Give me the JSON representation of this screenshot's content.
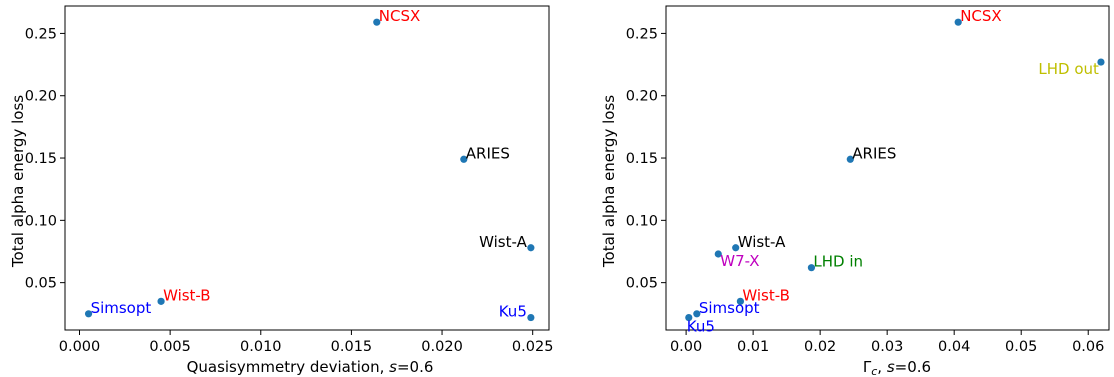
{
  "chart_data": [
    {
      "type": "scatter",
      "xlabel": "Quasisymmetry deviation, ",
      "xlabel_italic": "s",
      "xlabel_suffix": "=0.6",
      "ylabel": "Total alpha energy loss",
      "xlim": [
        -0.0008,
        0.0259
      ],
      "ylim": [
        0.012,
        0.272
      ],
      "xticks": [
        0.0,
        0.005,
        0.01,
        0.015,
        0.02,
        0.025
      ],
      "xtick_labels": [
        "0.000",
        "0.005",
        "0.010",
        "0.015",
        "0.020",
        "0.025"
      ],
      "yticks": [
        0.05,
        0.1,
        0.15,
        0.2,
        0.25
      ],
      "ytick_labels": [
        "0.05",
        "0.10",
        "0.15",
        "0.20",
        "0.25"
      ],
      "marker_color": "#1f77b4",
      "points": [
        {
          "label": "NCSX",
          "x": 0.0164,
          "y": 0.259,
          "color": "#ff0000",
          "anchor": "start"
        },
        {
          "label": "ARIES",
          "x": 0.0212,
          "y": 0.149,
          "color": "#000000",
          "anchor": "start"
        },
        {
          "label": "Wist-A",
          "x": 0.0249,
          "y": 0.078,
          "color": "#000000",
          "anchor": "end"
        },
        {
          "label": "Wist-B",
          "x": 0.0045,
          "y": 0.035,
          "color": "#ff0000",
          "anchor": "start"
        },
        {
          "label": "Simsopt",
          "x": 0.0005,
          "y": 0.025,
          "color": "#0000ff",
          "anchor": "start"
        },
        {
          "label": "Ku5",
          "x": 0.0249,
          "y": 0.022,
          "color": "#0000ff",
          "anchor": "end"
        }
      ]
    },
    {
      "type": "scatter",
      "xlabel": "Γ",
      "xlabel_sub": "c",
      "xlabel_mid": ", ",
      "xlabel_italic": "s",
      "xlabel_suffix": "=0.6",
      "ylabel": "Total alpha energy loss",
      "xlim": [
        -0.003,
        0.0631
      ],
      "ylim": [
        0.012,
        0.272
      ],
      "xticks": [
        0.0,
        0.01,
        0.02,
        0.03,
        0.04,
        0.05,
        0.06
      ],
      "xtick_labels": [
        "0.00",
        "0.01",
        "0.02",
        "0.03",
        "0.04",
        "0.05",
        "0.06"
      ],
      "yticks": [
        0.05,
        0.1,
        0.15,
        0.2,
        0.25
      ],
      "ytick_labels": [
        "0.05",
        "0.10",
        "0.15",
        "0.20",
        "0.25"
      ],
      "marker_color": "#1f77b4",
      "points": [
        {
          "label": "NCSX",
          "x": 0.0406,
          "y": 0.259,
          "color": "#ff0000",
          "anchor": "start"
        },
        {
          "label": "LHD out",
          "x": 0.0619,
          "y": 0.227,
          "color": "#bfbf00",
          "anchor": "end"
        },
        {
          "label": "ARIES",
          "x": 0.0245,
          "y": 0.149,
          "color": "#000000",
          "anchor": "start"
        },
        {
          "label": "Wist-A",
          "x": 0.0074,
          "y": 0.078,
          "color": "#000000",
          "anchor": "start"
        },
        {
          "label": "W7-X",
          "x": 0.0048,
          "y": 0.073,
          "color": "#bf00bf",
          "anchor": "start"
        },
        {
          "label": "LHD in",
          "x": 0.0187,
          "y": 0.062,
          "color": "#008000",
          "anchor": "start"
        },
        {
          "label": "Wist-B",
          "x": 0.0081,
          "y": 0.035,
          "color": "#ff0000",
          "anchor": "start"
        },
        {
          "label": "Simsopt",
          "x": 0.0016,
          "y": 0.025,
          "color": "#0000ff",
          "anchor": "start"
        },
        {
          "label": "Ku5",
          "x": 0.0004,
          "y": 0.022,
          "color": "#0000ff",
          "anchor": "start"
        }
      ]
    }
  ]
}
